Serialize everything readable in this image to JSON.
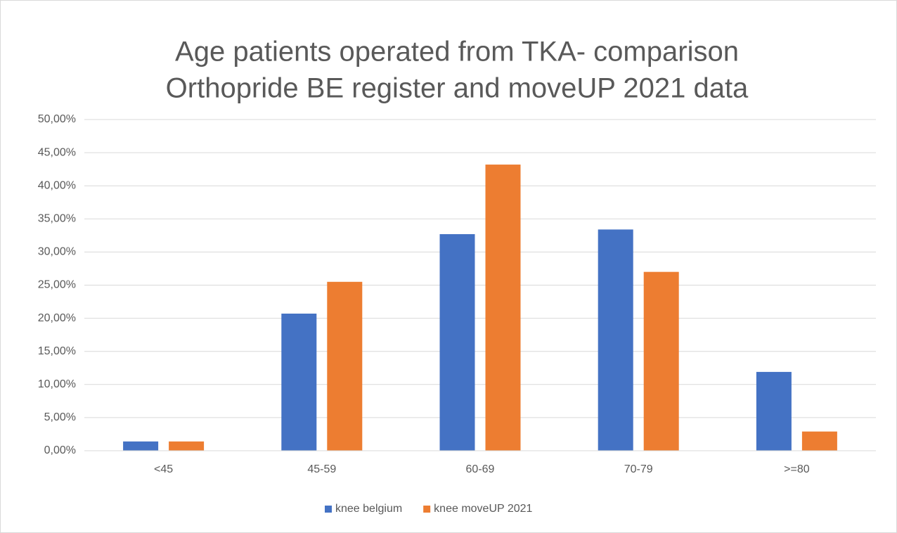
{
  "chart_data": {
    "type": "bar",
    "title": [
      "Age patients operated from TKA- comparison",
      "Orthopride BE register and moveUP 2021 data"
    ],
    "categories": [
      "<45",
      "45-59",
      "60-69",
      "70-79",
      ">=80"
    ],
    "series": [
      {
        "name": "knee belgium",
        "color": "#4472c4",
        "values": [
          1.4,
          20.7,
          32.7,
          33.4,
          11.9
        ]
      },
      {
        "name": "knee moveUP 2021",
        "color": "#ed7d31",
        "values": [
          1.4,
          25.5,
          43.2,
          27.0,
          2.9
        ]
      }
    ],
    "ylim": [
      0,
      50
    ],
    "yticks": [
      {
        "value": 0,
        "label": "0,00%"
      },
      {
        "value": 5,
        "label": "5,00%"
      },
      {
        "value": 10,
        "label": "10,00%"
      },
      {
        "value": 15,
        "label": "15,00%"
      },
      {
        "value": 20,
        "label": "20,00%"
      },
      {
        "value": 25,
        "label": "25,00%"
      },
      {
        "value": 30,
        "label": "30,00%"
      },
      {
        "value": 35,
        "label": "35,00%"
      },
      {
        "value": 40,
        "label": "40,00%"
      },
      {
        "value": 45,
        "label": "45,00%"
      },
      {
        "value": 50,
        "label": "50,00%"
      }
    ],
    "grid": true,
    "legend": "bottom"
  }
}
